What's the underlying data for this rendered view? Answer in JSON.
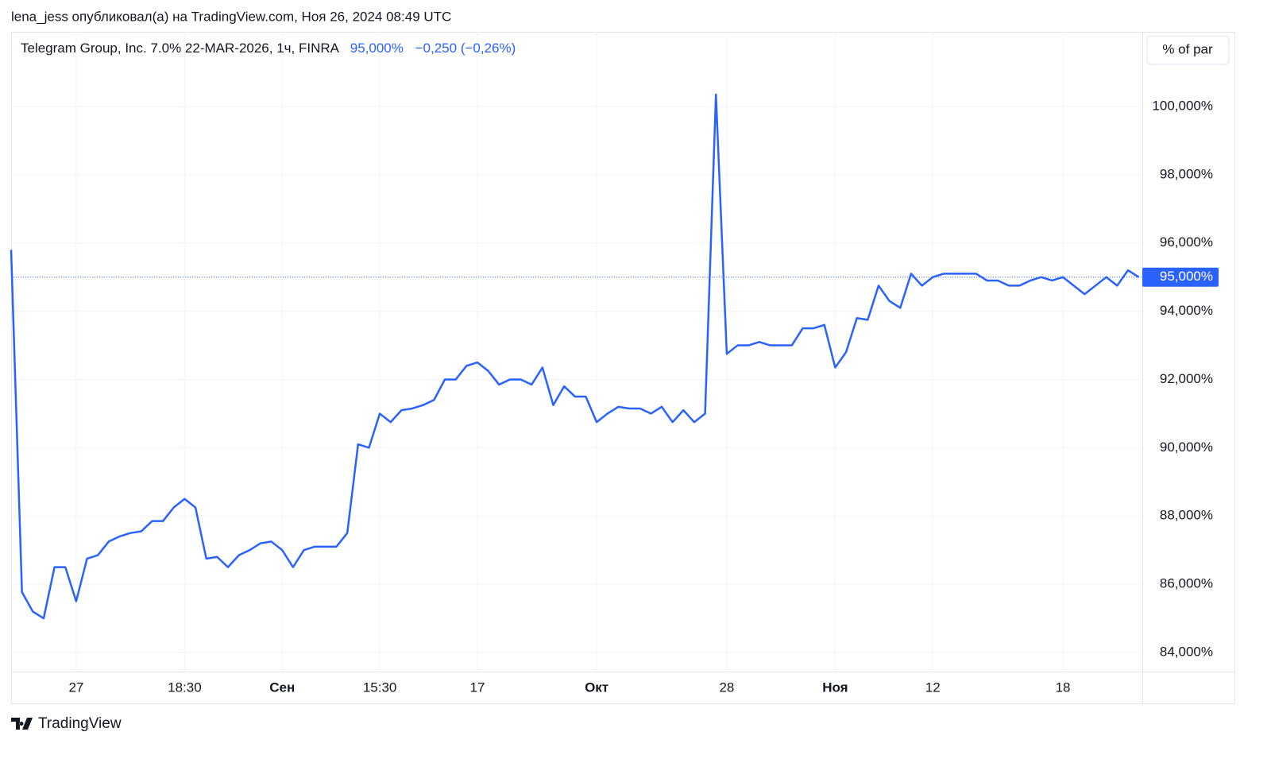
{
  "header": "lena_jess опубликовал(а) на TradingView.com, Ноя 26, 2024 08:49 UTC",
  "footer_brand": "TradingView",
  "unit_button": "% of par",
  "chart_data": {
    "type": "line",
    "legend": {
      "symbol": "Telegram Group, Inc. 7.0% 22-MAR-2026, 1ч, FINRA",
      "price": "95,000%",
      "change": "−0,250 (−0,26%)"
    },
    "categories": [
      null,
      null,
      null,
      null,
      null,
      null,
      "27",
      null,
      null,
      null,
      null,
      null,
      null,
      null,
      null,
      null,
      "18:30",
      null,
      null,
      null,
      null,
      null,
      null,
      null,
      null,
      "Сен",
      null,
      null,
      null,
      null,
      null,
      null,
      null,
      null,
      "15:30",
      null,
      null,
      null,
      null,
      null,
      null,
      null,
      null,
      "17",
      null,
      null,
      null,
      null,
      null,
      null,
      null,
      null,
      null,
      null,
      "Окт",
      null,
      null,
      null,
      null,
      null,
      null,
      null,
      null,
      null,
      null,
      null,
      "28",
      null,
      null,
      null,
      null,
      null,
      null,
      null,
      null,
      null,
      "Ноя",
      null,
      null,
      null,
      null,
      null,
      null,
      null,
      null,
      "12",
      null,
      null,
      null,
      null,
      null,
      null,
      null,
      null,
      null,
      null,
      null,
      "18",
      null,
      null,
      null,
      null,
      null,
      null,
      null
    ],
    "series": [
      {
        "name": "Telegram Group, Inc. 7.0% 22-MAR-2026",
        "color": "#2962ff",
        "values": [
          95.8,
          85.77,
          85.2,
          85.0,
          86.5,
          86.5,
          85.5,
          86.75,
          86.85,
          87.25,
          87.4,
          87.5,
          87.55,
          87.85,
          87.85,
          88.25,
          88.5,
          88.25,
          86.75,
          86.8,
          86.5,
          86.85,
          87.0,
          87.2,
          87.25,
          87.0,
          86.5,
          87.0,
          87.1,
          87.1,
          87.1,
          87.5,
          90.1,
          90.0,
          91.0,
          90.75,
          91.1,
          91.15,
          91.25,
          91.4,
          92.0,
          92.0,
          92.4,
          92.5,
          92.25,
          91.85,
          92.0,
          92.0,
          91.85,
          92.35,
          91.25,
          91.8,
          91.5,
          91.5,
          90.75,
          91.0,
          91.2,
          91.15,
          91.15,
          91.0,
          91.2,
          90.75,
          91.1,
          90.75,
          91.0,
          100.35,
          92.75,
          93.0,
          93.0,
          93.1,
          93.0,
          93.0,
          93.0,
          93.5,
          93.5,
          93.6,
          92.35,
          92.8,
          93.8,
          93.75,
          94.75,
          94.3,
          94.1,
          95.1,
          94.75,
          95.0,
          95.1,
          95.1,
          95.1,
          95.1,
          94.9,
          94.9,
          94.75,
          94.75,
          94.9,
          95.0,
          94.9,
          95.0,
          94.75,
          94.5,
          94.75,
          95.0,
          94.75,
          95.2,
          95.0
        ]
      }
    ],
    "price_line": {
      "value": 95,
      "label": "95,000%"
    },
    "ylim": [
      83.44,
      102.19
    ],
    "yticks": [
      {
        "value": 84,
        "label": "84,000%"
      },
      {
        "value": 86,
        "label": "86,000%"
      },
      {
        "value": 88,
        "label": "88,000%"
      },
      {
        "value": 90,
        "label": "90,000%"
      },
      {
        "value": 92,
        "label": "92,000%"
      },
      {
        "value": 94,
        "label": "94,000%"
      },
      {
        "value": 96,
        "label": "96,000%"
      },
      {
        "value": 98,
        "label": "98,000%"
      },
      {
        "value": 100,
        "label": "100,000%"
      }
    ],
    "grid": true
  }
}
